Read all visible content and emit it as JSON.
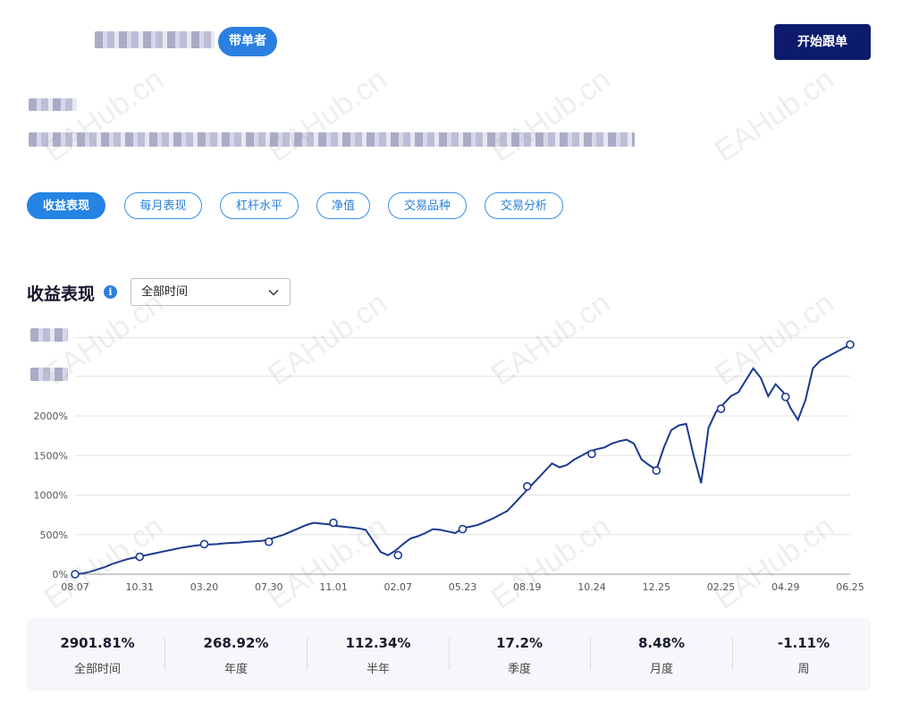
{
  "header": {
    "badge_label": "带单者",
    "cta_label": "开始跟单"
  },
  "tabs": [
    {
      "label": "收益表现",
      "active": true
    },
    {
      "label": "每月表现",
      "active": false
    },
    {
      "label": "杠杆水平",
      "active": false
    },
    {
      "label": "净值",
      "active": false
    },
    {
      "label": "交易品种",
      "active": false
    },
    {
      "label": "交易分析",
      "active": false
    }
  ],
  "section": {
    "title": "收益表现",
    "info_icon": "info-icon",
    "range_select_value": "全部时间"
  },
  "watermark_text": "EAHub.cn",
  "colors": {
    "accent": "#2583e4",
    "cta": "#0c1b6b",
    "line": "#1a3a8f"
  },
  "chart_data": {
    "type": "line",
    "x_ticks": [
      "08.07",
      "10.31",
      "03.20",
      "07.30",
      "11.01",
      "02.07",
      "05.23",
      "08.19",
      "10.24",
      "12.25",
      "02.25",
      "04.29",
      "06.25"
    ],
    "y_ticks": [
      "0%",
      "500%",
      "1000%",
      "1500%",
      "2000%"
    ],
    "ylim": [
      0,
      3000
    ],
    "grid": true,
    "series": [
      {
        "values": [
          0,
          10,
          30,
          60,
          90,
          130,
          160,
          190,
          210,
          230,
          250,
          270,
          290,
          310,
          330,
          345,
          360,
          370,
          375,
          380,
          390,
          395,
          400,
          410,
          415,
          420,
          440,
          470,
          500,
          540,
          580,
          620,
          650,
          640,
          630,
          610,
          600,
          590,
          580,
          560,
          420,
          280,
          240,
          300,
          380,
          450,
          480,
          520,
          570,
          560,
          540,
          520,
          580,
          600,
          620,
          660,
          700,
          750,
          800,
          900,
          1000,
          1100,
          1200,
          1300,
          1400,
          1350,
          1380,
          1450,
          1500,
          1550,
          1580,
          1600,
          1650,
          1680,
          1700,
          1650,
          1450,
          1380,
          1320,
          1600,
          1820,
          1880,
          1900,
          1500,
          1150,
          1850,
          2050,
          2150,
          2250,
          2300,
          2450,
          2600,
          2480,
          2250,
          2400,
          2300,
          2100,
          1950,
          2200,
          2600,
          2700,
          2750,
          2800,
          2850,
          2901
        ]
      }
    ],
    "markers": [
      0,
      220,
      380,
      410,
      650,
      240,
      570,
      1110,
      1520,
      1310,
      2090,
      2240,
      2901
    ]
  },
  "stats": [
    {
      "value": "2901.81%",
      "label": "全部时间"
    },
    {
      "value": "268.92%",
      "label": "年度"
    },
    {
      "value": "112.34%",
      "label": "半年"
    },
    {
      "value": "17.2%",
      "label": "季度"
    },
    {
      "value": "8.48%",
      "label": "月度"
    },
    {
      "value": "-1.11%",
      "label": "周"
    }
  ]
}
